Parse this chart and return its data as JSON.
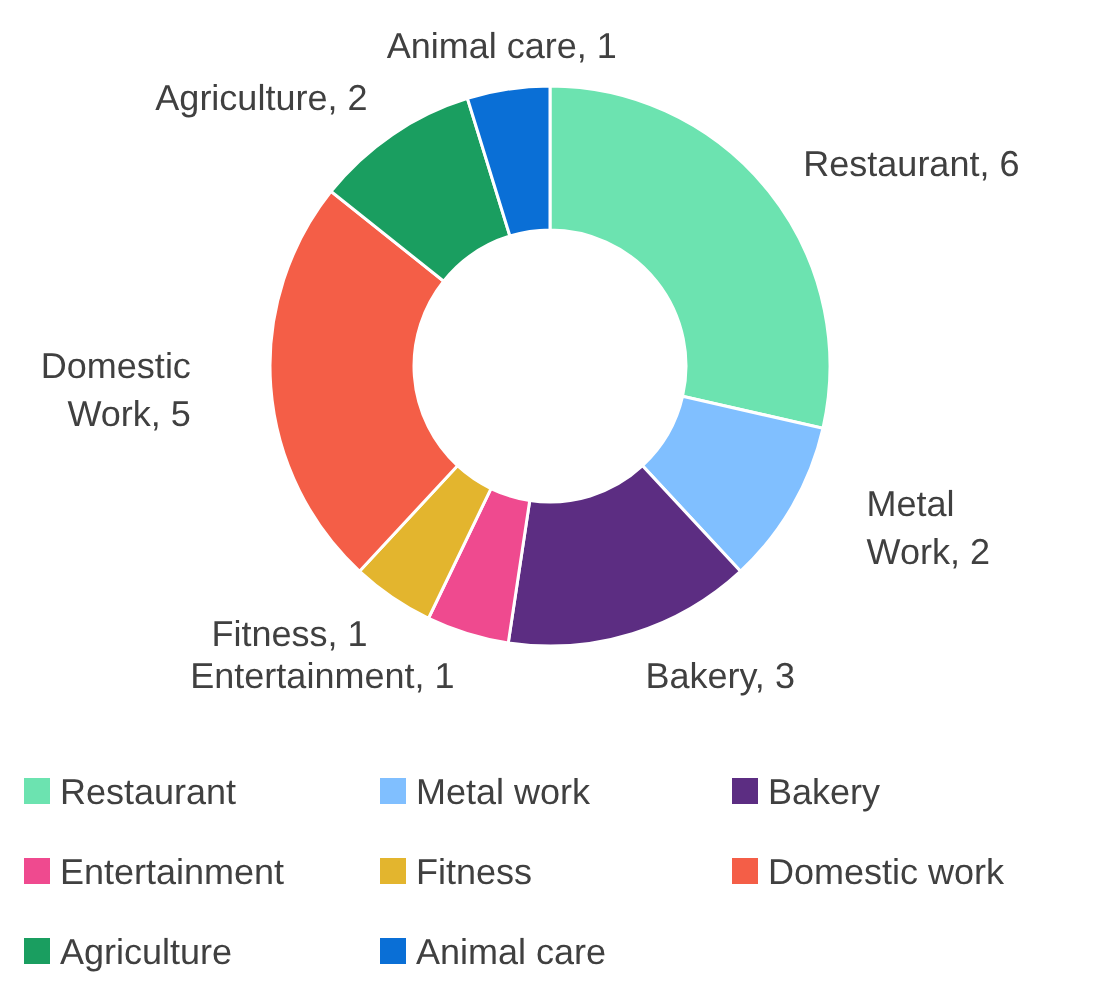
{
  "chart_data": {
    "type": "donut",
    "categories": [
      "Restaurant",
      "Metal work",
      "Bakery",
      "Entertainment",
      "Fitness",
      "Domestic work",
      "Agriculture",
      "Animal care"
    ],
    "values": [
      6,
      2,
      3,
      1,
      1,
      5,
      2,
      1
    ],
    "colors": [
      "#6ce3b0",
      "#80bfff",
      "#5c2d82",
      "#ef4a8f",
      "#e3b52e",
      "#f45e47",
      "#1a9e60",
      "#0a6fd6"
    ],
    "value_labels": [
      "Restaurant, 6",
      "Metal Work, 2",
      "Bakery, 3",
      "Entertainment, 1",
      "Fitness, 1",
      "Domestic Work, 5",
      "Agriculture, 2",
      "Animal care, 1"
    ],
    "legend": "bottom"
  }
}
